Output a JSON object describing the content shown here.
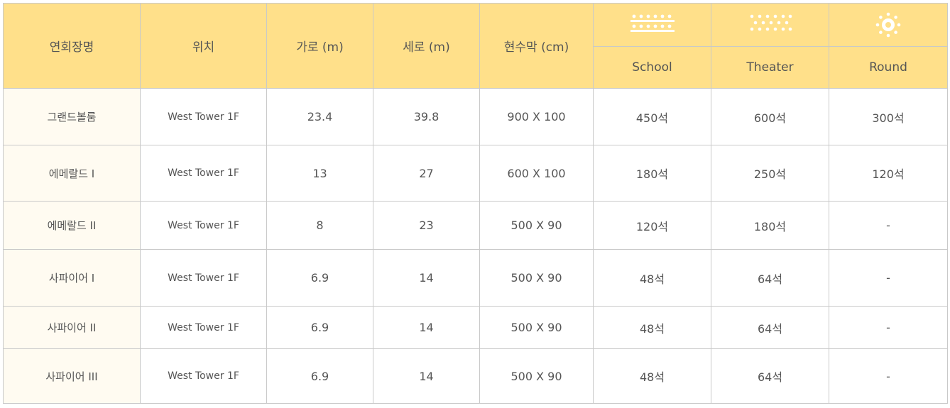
{
  "headers": {
    "name": "연회장명",
    "location": "위치",
    "width": "가로 (m)",
    "length": "세로 (m)",
    "banner": "현수막 (cm)",
    "school": "School",
    "theater": "Theater",
    "round": "Round"
  },
  "icons": {
    "school": "school-seating-icon",
    "theater": "theater-seating-icon",
    "round": "round-table-icon"
  },
  "colors": {
    "header_bg": "#ffe08a",
    "name_col_bg": "#fffbf1",
    "border": "#c9c9c9"
  },
  "rows": [
    {
      "name": "그랜드볼룸",
      "location": "West Tower 1F",
      "width": "23.4",
      "length": "39.8",
      "banner": "900 X 100",
      "school": "450석",
      "theater": "600석",
      "round": "300석"
    },
    {
      "name": "에메랄드 I",
      "location": "West Tower 1F",
      "width": "13",
      "length": "27",
      "banner": "600 X 100",
      "school": "180석",
      "theater": "250석",
      "round": "120석"
    },
    {
      "name": "에메랄드 II",
      "location": "West Tower 1F",
      "width": "8",
      "length": "23",
      "banner": "500 X 90",
      "school": "120석",
      "theater": "180석",
      "round": "-"
    },
    {
      "name": "사파이어 I",
      "location": "West Tower 1F",
      "width": "6.9",
      "length": "14",
      "banner": "500 X 90",
      "school": "48석",
      "theater": "64석",
      "round": "-"
    },
    {
      "name": "사파이어 II",
      "location": "West Tower 1F",
      "width": "6.9",
      "length": "14",
      "banner": "500 X 90",
      "school": "48석",
      "theater": "64석",
      "round": "-"
    },
    {
      "name": "사파이어 III",
      "location": "West Tower 1F",
      "width": "6.9",
      "length": "14",
      "banner": "500 X 90",
      "school": "48석",
      "theater": "64석",
      "round": "-"
    }
  ]
}
